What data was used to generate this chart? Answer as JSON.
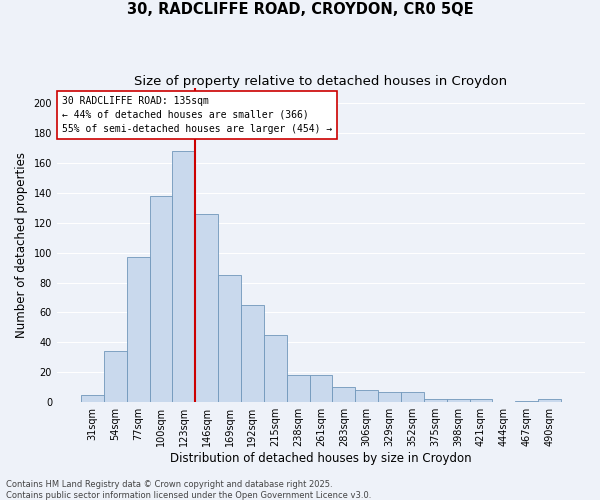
{
  "title_line1": "30, RADCLIFFE ROAD, CROYDON, CR0 5QE",
  "title_line2": "Size of property relative to detached houses in Croydon",
  "xlabel": "Distribution of detached houses by size in Croydon",
  "ylabel": "Number of detached properties",
  "categories": [
    "31sqm",
    "54sqm",
    "77sqm",
    "100sqm",
    "123sqm",
    "146sqm",
    "169sqm",
    "192sqm",
    "215sqm",
    "238sqm",
    "261sqm",
    "283sqm",
    "306sqm",
    "329sqm",
    "352sqm",
    "375sqm",
    "398sqm",
    "421sqm",
    "444sqm",
    "467sqm",
    "490sqm"
  ],
  "values": [
    5,
    34,
    97,
    138,
    168,
    126,
    85,
    65,
    45,
    18,
    18,
    10,
    8,
    7,
    7,
    2,
    2,
    2,
    0,
    1,
    2
  ],
  "bar_color": "#c9d9ed",
  "bar_edge_color": "#7097bb",
  "background_color": "#eef2f9",
  "grid_color": "#ffffff",
  "red_line_x": 4.5,
  "red_line_color": "#cc0000",
  "annotation_line1": "30 RADCLIFFE ROAD: 135sqm",
  "annotation_line2": "← 44% of detached houses are smaller (366)",
  "annotation_line3": "55% of semi-detached houses are larger (454) →",
  "annotation_box_color": "#ffffff",
  "annotation_box_edge": "#cc0000",
  "ylim": [
    0,
    210
  ],
  "yticks": [
    0,
    20,
    40,
    60,
    80,
    100,
    120,
    140,
    160,
    180,
    200
  ],
  "footnote": "Contains HM Land Registry data © Crown copyright and database right 2025.\nContains public sector information licensed under the Open Government Licence v3.0.",
  "title_fontsize": 10.5,
  "subtitle_fontsize": 9.5,
  "tick_fontsize": 7,
  "label_fontsize": 8.5,
  "annotation_fontsize": 7,
  "footnote_fontsize": 6
}
